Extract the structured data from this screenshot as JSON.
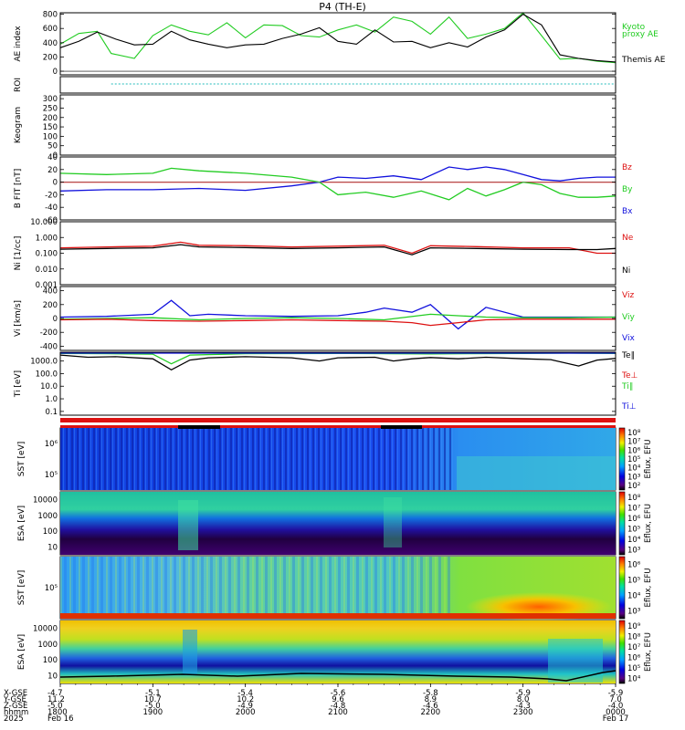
{
  "title": "P4 (TH-E)",
  "colors": {
    "black": "#000000",
    "red": "#dd1111",
    "green": "#22cc22",
    "blue": "#1111dd",
    "cyan": "#22bbbb"
  },
  "chart_data": [
    {
      "type": "line",
      "id": "ae",
      "ylabel": "AE index",
      "yticks": [
        "800",
        "600",
        "400",
        "200",
        "0"
      ],
      "yrange": [
        -50,
        820
      ],
      "legend": [
        "Kyoto",
        "proxy AE",
        "Themis AE"
      ],
      "series": [
        {
          "name": "Kyoto proxy AE",
          "color": "#22cc22",
          "x": [
            0,
            0.2,
            0.4,
            0.55,
            0.8,
            1.0,
            1.2,
            1.4,
            1.6,
            1.8,
            2.0,
            2.2,
            2.4,
            2.6,
            2.8,
            3.0,
            3.2,
            3.4,
            3.6,
            3.8,
            4.0,
            4.2,
            4.4,
            4.6,
            4.8,
            5.0,
            5.2,
            5.4,
            5.6,
            5.8,
            6.0
          ],
          "y": [
            380,
            530,
            560,
            250,
            180,
            500,
            650,
            560,
            510,
            680,
            470,
            650,
            640,
            500,
            480,
            580,
            650,
            550,
            760,
            700,
            520,
            760,
            460,
            520,
            600,
            820,
            500,
            170,
            180,
            140,
            120
          ]
        },
        {
          "name": "Themis AE",
          "color": "#000000",
          "x": [
            0,
            0.2,
            0.4,
            0.6,
            0.8,
            1.0,
            1.2,
            1.4,
            1.6,
            1.8,
            2.0,
            2.2,
            2.4,
            2.6,
            2.8,
            3.0,
            3.2,
            3.4,
            3.6,
            3.8,
            4.0,
            4.2,
            4.4,
            4.6,
            4.8,
            5.0,
            5.2,
            5.4,
            5.6,
            5.8,
            6.0
          ],
          "y": [
            330,
            420,
            550,
            450,
            370,
            380,
            560,
            440,
            380,
            330,
            370,
            380,
            460,
            520,
            610,
            420,
            380,
            580,
            410,
            420,
            330,
            400,
            340,
            480,
            580,
            800,
            650,
            230,
            180,
            150,
            130
          ]
        }
      ]
    },
    {
      "type": "line",
      "id": "roi",
      "ylabel": "ROI",
      "series": [
        {
          "name": "ROI",
          "color": "#22bbbb",
          "x": [
            0.55,
            6.0
          ],
          "y": [
            1,
            1
          ]
        }
      ]
    },
    {
      "type": "line",
      "id": "keogram",
      "ylabel": "Keogram",
      "yticks": [
        "300",
        "250",
        "200",
        "150",
        "100",
        "50",
        "0"
      ],
      "yrange": [
        0,
        320
      ]
    },
    {
      "type": "line",
      "id": "bfield",
      "ylabel": "B FIT [nT]",
      "yticks": [
        "40",
        "20",
        "0",
        "-20",
        "-40",
        "-60"
      ],
      "yrange": [
        -60,
        40
      ],
      "legend": [
        "Bz",
        "By",
        "Bx"
      ],
      "series": [
        {
          "name": "Bz",
          "color": "#dd1111",
          "x": [
            0,
            6
          ],
          "y": [
            0,
            0
          ]
        },
        {
          "name": "Bx",
          "color": "#1111dd",
          "x": [
            0,
            0.5,
            1.0,
            1.5,
            2.0,
            2.5,
            2.8,
            3.0,
            3.3,
            3.6,
            3.9,
            4.2,
            4.4,
            4.6,
            4.8,
            5.0,
            5.2,
            5.4,
            5.6,
            5.8,
            6.0
          ],
          "y": [
            -14,
            -12,
            -12,
            -10,
            -13,
            -6,
            0,
            8,
            6,
            10,
            4,
            24,
            20,
            24,
            20,
            12,
            4,
            2,
            6,
            8,
            8
          ]
        },
        {
          "name": "By",
          "color": "#22cc22",
          "x": [
            0,
            0.5,
            1.0,
            1.2,
            1.5,
            2.0,
            2.5,
            2.8,
            3.0,
            3.3,
            3.6,
            3.9,
            4.2,
            4.4,
            4.6,
            4.8,
            5.0,
            5.2,
            5.4,
            5.6,
            5.8,
            6.0
          ],
          "y": [
            14,
            12,
            14,
            22,
            18,
            14,
            8,
            0,
            -20,
            -16,
            -24,
            -14,
            -28,
            -10,
            -22,
            -12,
            0,
            -4,
            -18,
            -24,
            -24,
            -22
          ]
        }
      ]
    },
    {
      "type": "line",
      "id": "density",
      "ylabel": "Ni [1/cc]",
      "log": true,
      "yticks": [
        "10.000",
        "1.000",
        "0.100",
        "0.010",
        "0.001"
      ],
      "yrange": [
        0.001,
        10
      ],
      "legend": [
        "Ne",
        "Ni"
      ],
      "series": [
        {
          "name": "Ne",
          "color": "#dd1111",
          "x": [
            0,
            0.5,
            1.0,
            1.3,
            1.5,
            2.0,
            2.5,
            3.0,
            3.5,
            3.8,
            4.0,
            4.5,
            5.0,
            5.5,
            5.8,
            6.0
          ],
          "y": [
            0.22,
            0.25,
            0.28,
            0.5,
            0.32,
            0.3,
            0.25,
            0.28,
            0.32,
            0.1,
            0.3,
            0.26,
            0.22,
            0.22,
            0.1,
            0.1
          ]
        },
        {
          "name": "Ni",
          "color": "#000000",
          "x": [
            0,
            0.5,
            1.0,
            1.3,
            1.5,
            2.0,
            2.5,
            3.0,
            3.5,
            3.8,
            4.0,
            4.5,
            5.0,
            5.5,
            5.8,
            6.0
          ],
          "y": [
            0.18,
            0.2,
            0.22,
            0.35,
            0.25,
            0.23,
            0.2,
            0.22,
            0.25,
            0.08,
            0.22,
            0.2,
            0.18,
            0.17,
            0.17,
            0.2
          ]
        }
      ]
    },
    {
      "type": "line",
      "id": "velocity",
      "ylabel": "Vi [km/s]",
      "yticks": [
        "400",
        "200",
        "0",
        "-200",
        "-400"
      ],
      "yrange": [
        -460,
        460
      ],
      "legend": [
        "Viz",
        "Viy",
        "Vix"
      ],
      "series": [
        {
          "name": "Vix",
          "color": "#1111dd",
          "x": [
            0,
            0.5,
            1.0,
            1.2,
            1.4,
            1.6,
            2.0,
            2.5,
            3.0,
            3.3,
            3.5,
            3.8,
            4.0,
            4.3,
            4.6,
            5.0,
            5.5,
            6.0
          ],
          "y": [
            20,
            30,
            60,
            260,
            40,
            60,
            40,
            30,
            40,
            90,
            150,
            90,
            200,
            -150,
            160,
            20,
            20,
            20
          ]
        },
        {
          "name": "Viy",
          "color": "#22cc22",
          "x": [
            0,
            0.5,
            1.0,
            1.5,
            2.0,
            2.5,
            3.0,
            3.5,
            4.0,
            4.3,
            4.6,
            5.0,
            5.5,
            6.0
          ],
          "y": [
            -10,
            0,
            10,
            -20,
            0,
            10,
            0,
            -20,
            60,
            40,
            20,
            10,
            10,
            20
          ]
        },
        {
          "name": "Viz",
          "color": "#dd1111",
          "x": [
            0,
            0.5,
            1.0,
            1.5,
            2.0,
            2.5,
            3.0,
            3.5,
            3.8,
            4.0,
            4.3,
            4.6,
            5.0,
            5.5,
            6.0
          ],
          "y": [
            -20,
            -10,
            -30,
            -40,
            -30,
            -20,
            -30,
            -40,
            -60,
            -100,
            -60,
            -20,
            -10,
            -10,
            -10
          ]
        }
      ]
    },
    {
      "type": "line",
      "id": "temperature",
      "ylabel": "Ti [eV]",
      "log": true,
      "yticks": [
        "1000.0",
        "100.0",
        "10.0",
        "1.0",
        "0.1"
      ],
      "yrange": [
        0.05,
        5000
      ],
      "legend": [
        "Te∥",
        "Te⊥",
        "Ti∥",
        "Ti⊥"
      ],
      "series": [
        {
          "name": "Te∥",
          "color": "#000000",
          "x": [
            0,
            0.3,
            0.6,
            1.0,
            1.2,
            1.4,
            1.6,
            2.0,
            2.5,
            2.8,
            3.0,
            3.4,
            3.6,
            3.8,
            4.0,
            4.3,
            4.6,
            5.0,
            5.3,
            5.6,
            5.8,
            6.0
          ],
          "y": [
            3000,
            2000,
            2200,
            1500,
            200,
            1200,
            1800,
            2200,
            1800,
            1000,
            1800,
            2000,
            1000,
            1500,
            1900,
            1500,
            2000,
            1500,
            1300,
            400,
            1200,
            1600
          ]
        },
        {
          "name": "Ti∥",
          "color": "#22cc22",
          "x": [
            0,
            0.5,
            1.0,
            1.2,
            1.4,
            2.0,
            3.0,
            4.0,
            5.0,
            5.5,
            6.0
          ],
          "y": [
            4000,
            3800,
            3500,
            600,
            3000,
            3800,
            4000,
            3700,
            4000,
            4200,
            4000
          ]
        },
        {
          "name": "Ti⊥",
          "color": "#1111dd",
          "x": [
            0,
            6
          ],
          "y": [
            4200,
            4200
          ]
        }
      ]
    },
    {
      "type": "heatmap",
      "id": "sst_ion_top",
      "ylabel": "SST [eV]",
      "cbar_label": "Eflux, EFU",
      "yticks": [
        "10⁶",
        "10⁵"
      ],
      "cbar_ticks": [
        "10⁸",
        "10⁷",
        "10⁶",
        "10⁵",
        "10⁴",
        "10³",
        "10²"
      ]
    },
    {
      "type": "heatmap",
      "id": "esa_ion",
      "ylabel": "ESA [eV]",
      "cbar_label": "Eflux, EFU",
      "yticks": [
        "10000",
        "1000",
        "100",
        "10"
      ],
      "cbar_ticks": [
        "10⁸",
        "10⁷",
        "10⁶",
        "10⁵",
        "10⁴",
        "10³"
      ]
    },
    {
      "type": "heatmap",
      "id": "sst_elec",
      "ylabel": "SST [eV]",
      "cbar_label": "Eflux, EFU",
      "yticks": [
        "10⁵"
      ],
      "cbar_ticks": [
        "10⁶",
        "10⁵",
        "10⁴",
        "10³"
      ]
    },
    {
      "type": "heatmap",
      "id": "esa_elec",
      "ylabel": "ESA [eV]",
      "cbar_label": "Eflux, EFU",
      "yticks": [
        "10000",
        "1000",
        "100",
        "10"
      ],
      "cbar_ticks": [
        "10⁹",
        "10⁸",
        "10⁷",
        "10⁶",
        "10⁵",
        "10⁴"
      ]
    }
  ],
  "time_axis": {
    "row_labels": [
      "X-GSE",
      "Y-GSE",
      "Z-GSE",
      "hhmm",
      "2025"
    ],
    "columns": [
      {
        "vals": [
          "-4.7",
          "11.2",
          "-5.0",
          "1800",
          "Feb 16"
        ]
      },
      {
        "vals": [
          "-5.1",
          "10.7",
          "-5.0",
          "1900",
          ""
        ]
      },
      {
        "vals": [
          "-5.4",
          "10.2",
          "-4.9",
          "2000",
          ""
        ]
      },
      {
        "vals": [
          "-5.6",
          "9.6",
          "-4.8",
          "2100",
          ""
        ]
      },
      {
        "vals": [
          "-5.8",
          "8.9",
          "-4.6",
          "2200",
          ""
        ]
      },
      {
        "vals": [
          "-5.9",
          "8.0",
          "-4.3",
          "2300",
          ""
        ]
      },
      {
        "vals": [
          "-5.9",
          "7.0",
          "-4.0",
          "0000",
          "Feb 17"
        ]
      }
    ]
  }
}
